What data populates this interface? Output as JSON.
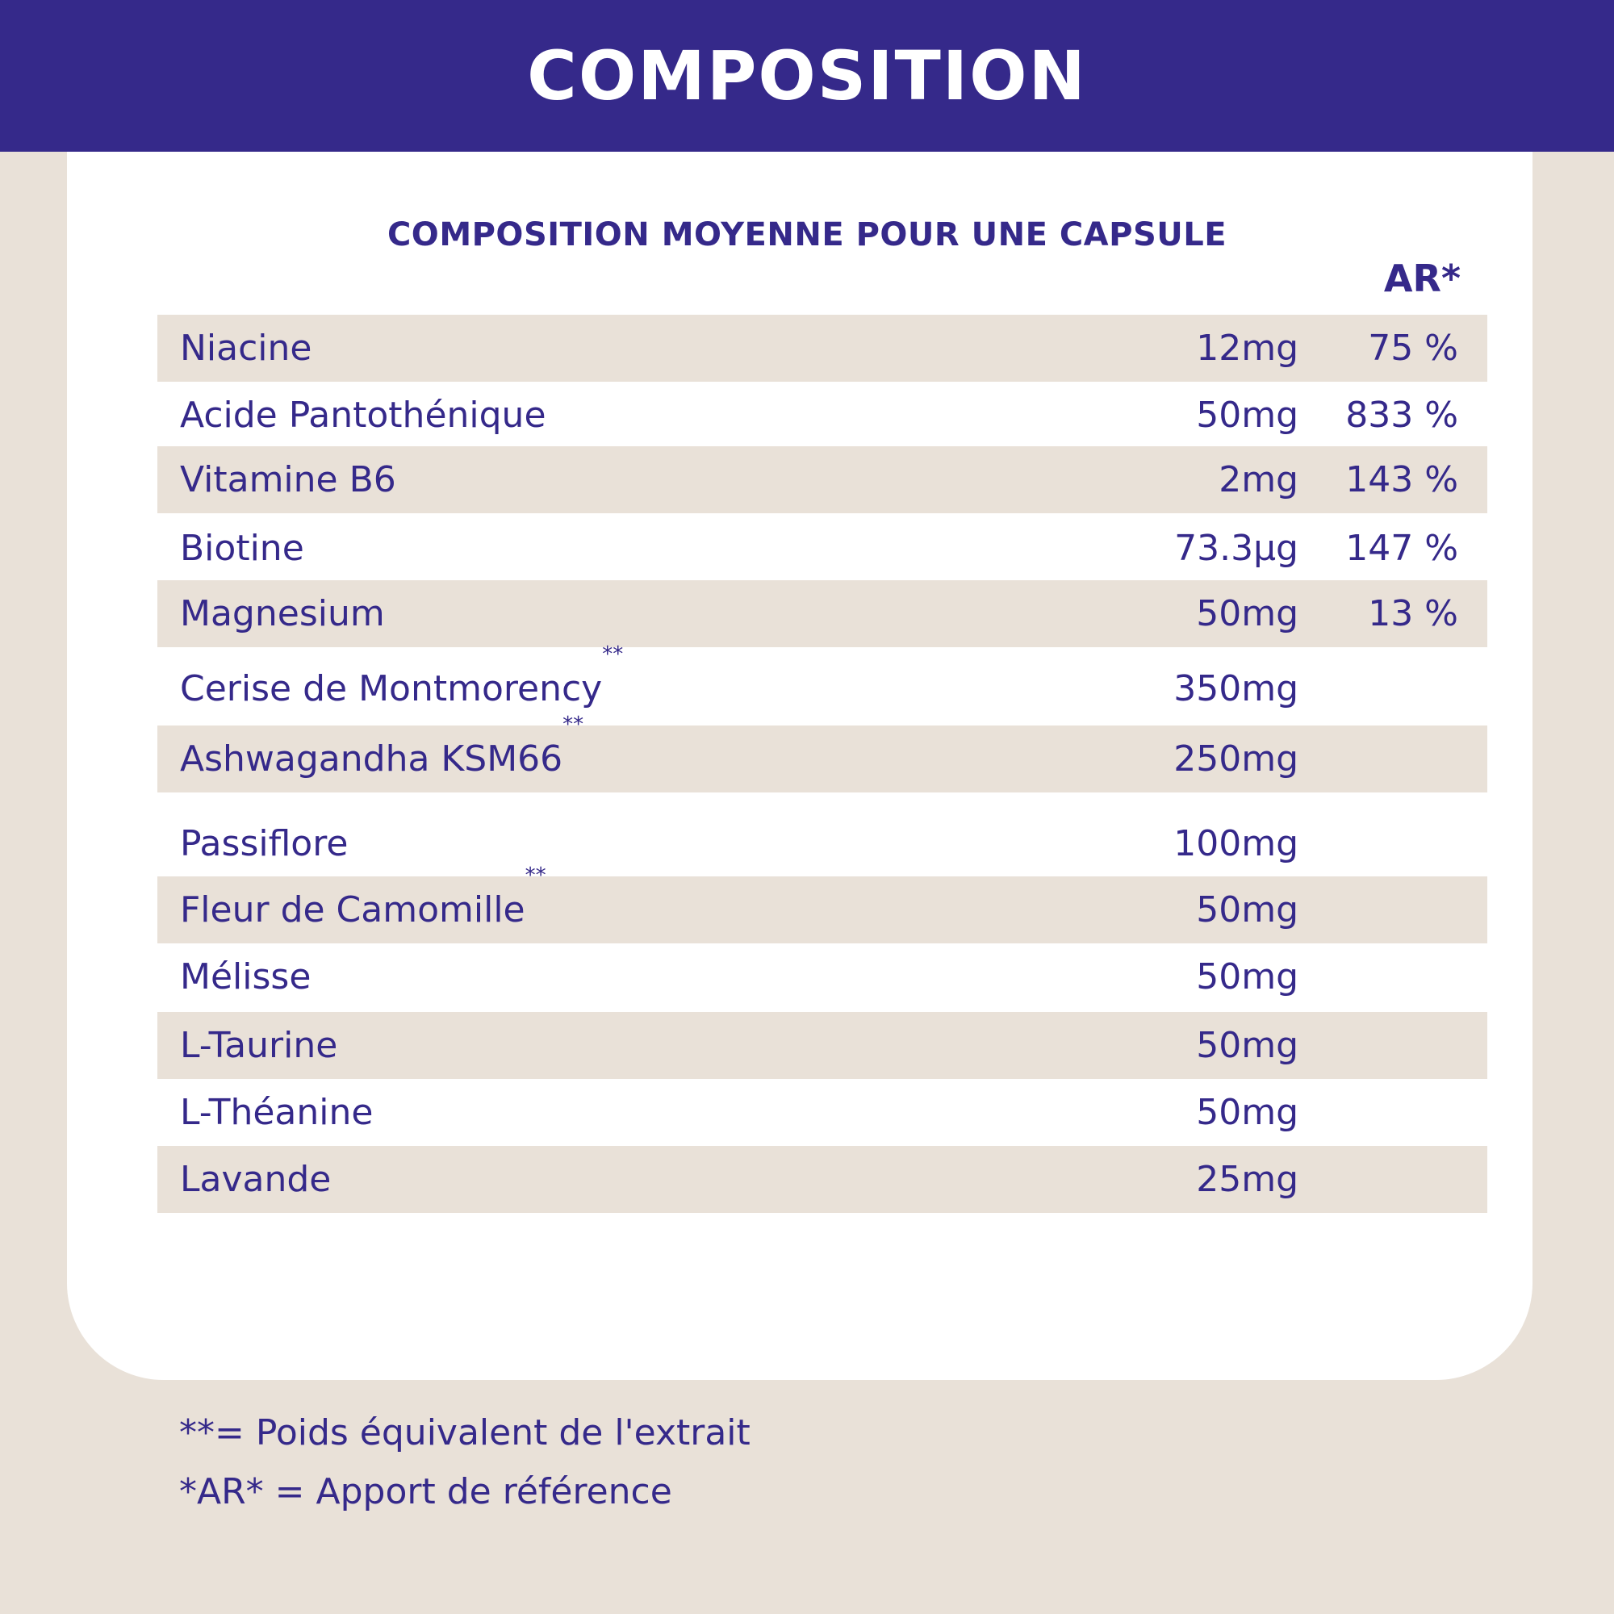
{
  "header": {
    "title": "COMPOSITION"
  },
  "table": {
    "subtitle": "COMPOSITION MOYENNE POUR UNE CAPSULE",
    "ar_header": "AR*",
    "rows": [
      {
        "name": "Niacine",
        "mark": "",
        "amount": "12mg",
        "ar": "75 %"
      },
      {
        "name": "Acide Pantothénique",
        "mark": "",
        "amount": "50mg",
        "ar": "833 %"
      },
      {
        "name": "Vitamine B6",
        "mark": "",
        "amount": "2mg",
        "ar": "143 %"
      },
      {
        "name": "Biotine",
        "mark": "",
        "amount": "73.3µg",
        "ar": "147 %"
      },
      {
        "name": "Magnesium",
        "mark": "",
        "amount": "50mg",
        "ar": "13 %"
      },
      {
        "name": "Cerise de Montmorency",
        "mark": "**",
        "amount": "350mg",
        "ar": ""
      },
      {
        "name": "Ashwagandha KSM66",
        "mark": "**",
        "amount": "250mg",
        "ar": ""
      },
      {
        "name": "Passiflore",
        "mark": "",
        "amount": "100mg",
        "ar": ""
      },
      {
        "name": "Fleur de Camomille",
        "mark": "**",
        "amount": "50mg",
        "ar": ""
      },
      {
        "name": "Mélisse",
        "mark": "",
        "amount": "50mg",
        "ar": ""
      },
      {
        "name": "L-Taurine",
        "mark": "",
        "amount": "50mg",
        "ar": ""
      },
      {
        "name": "L-Théanine",
        "mark": "",
        "amount": "50mg",
        "ar": ""
      },
      {
        "name": "Lavande",
        "mark": "",
        "amount": "25mg",
        "ar": ""
      }
    ]
  },
  "footnotes": {
    "extract": "**= Poids équivalent de l'extrait",
    "reference": "*AR* = Apport de référence"
  },
  "colors": {
    "brand_purple": "#35298a",
    "beige": "#e9e1d8",
    "card": "#ffffff"
  }
}
